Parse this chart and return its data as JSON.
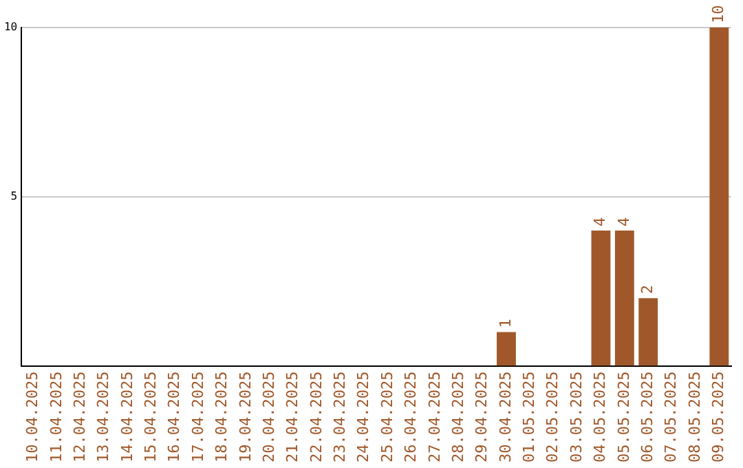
{
  "chart_data": {
    "type": "bar",
    "categories": [
      "10.04.2025",
      "11.04.2025",
      "12.04.2025",
      "13.04.2025",
      "14.04.2025",
      "15.04.2025",
      "16.04.2025",
      "17.04.2025",
      "18.04.2025",
      "19.04.2025",
      "20.04.2025",
      "21.04.2025",
      "22.04.2025",
      "23.04.2025",
      "24.04.2025",
      "25.04.2025",
      "26.04.2025",
      "27.04.2025",
      "28.04.2025",
      "29.04.2025",
      "30.04.2025",
      "01.05.2025",
      "02.05.2025",
      "03.05.2025",
      "04.05.2025",
      "05.05.2025",
      "06.05.2025",
      "07.05.2025",
      "08.05.2025",
      "09.05.2025"
    ],
    "values": [
      0,
      0,
      0,
      0,
      0,
      0,
      0,
      0,
      0,
      0,
      0,
      0,
      0,
      0,
      0,
      0,
      0,
      0,
      0,
      0,
      1,
      0,
      0,
      0,
      4,
      4,
      2,
      0,
      0,
      10
    ],
    "value_labels": [
      null,
      null,
      null,
      null,
      null,
      null,
      null,
      null,
      null,
      null,
      null,
      null,
      null,
      null,
      null,
      null,
      null,
      null,
      null,
      null,
      "1",
      null,
      null,
      null,
      "4",
      "4",
      "2",
      null,
      null,
      "10"
    ],
    "color": "#a0582a",
    "ylim": [
      0,
      10
    ],
    "yticks": [
      5,
      10
    ],
    "grid": "y",
    "legend": false
  }
}
